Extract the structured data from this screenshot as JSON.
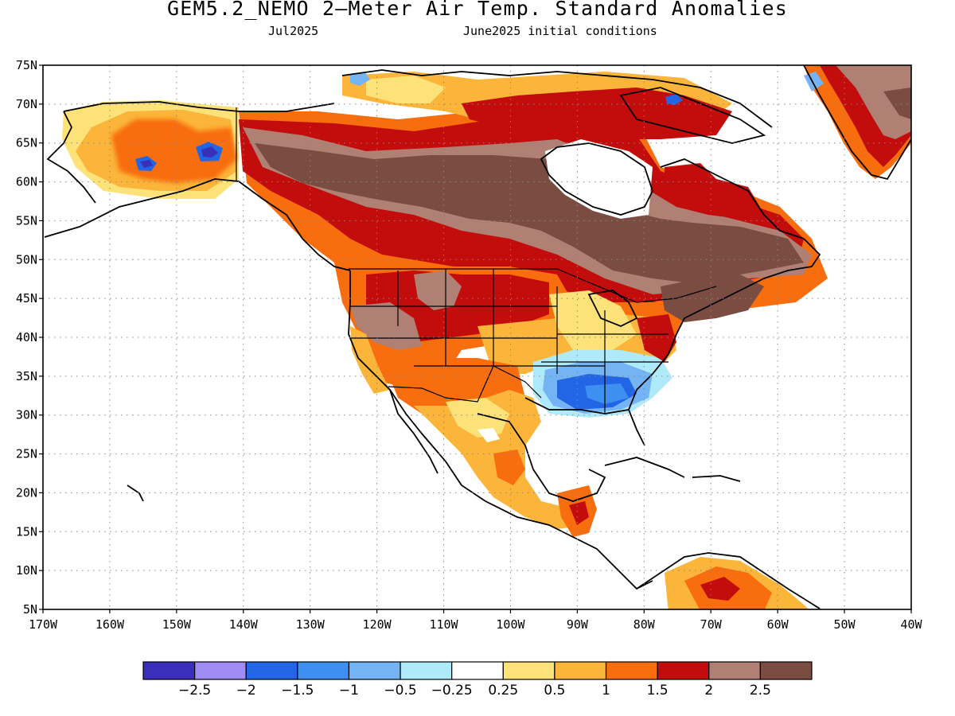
{
  "title": "GEM5.2_NEMO 2–Meter Air Temp. Standard Anomalies",
  "subtitle_left": "Jul2025",
  "subtitle_right": "June2025 initial conditions",
  "lat_labels": [
    "75N",
    "70N",
    "65N",
    "60N",
    "55N",
    "50N",
    "45N",
    "40N",
    "35N",
    "30N",
    "25N",
    "20N",
    "15N",
    "10N",
    "5N"
  ],
  "lon_labels": [
    "170W",
    "160W",
    "150W",
    "140W",
    "130W",
    "120W",
    "110W",
    "100W",
    "90W",
    "80W",
    "70W",
    "60W",
    "50W",
    "40W"
  ],
  "colorbar": {
    "colors": [
      "#3a2fb8",
      "#a08cf5",
      "#2266e6",
      "#3d8ff0",
      "#74b4f5",
      "#aeeafa",
      "#ffffff",
      "#fde27a",
      "#fbb53a",
      "#f86d0e",
      "#c30c0c",
      "#b08074",
      "#7a4c42"
    ],
    "labels": [
      "−2.5",
      "−2",
      "−1.5",
      "−1",
      "−0.5",
      "−0.25",
      "0.25",
      "0.5",
      "1",
      "1.5",
      "2",
      "2.5"
    ]
  },
  "map_regions": [
    {
      "name": "alaska-warm",
      "color": "#fbb53a"
    },
    {
      "name": "canada-very-warm",
      "color": "#7a4c42"
    },
    {
      "name": "western-us-warm",
      "color": "#c30c0c"
    },
    {
      "name": "southeast-us-cool",
      "color": "#3d8ff0"
    },
    {
      "name": "mexico-warm",
      "color": "#fbb53a"
    },
    {
      "name": "greenland-warm",
      "color": "#b08074"
    }
  ]
}
